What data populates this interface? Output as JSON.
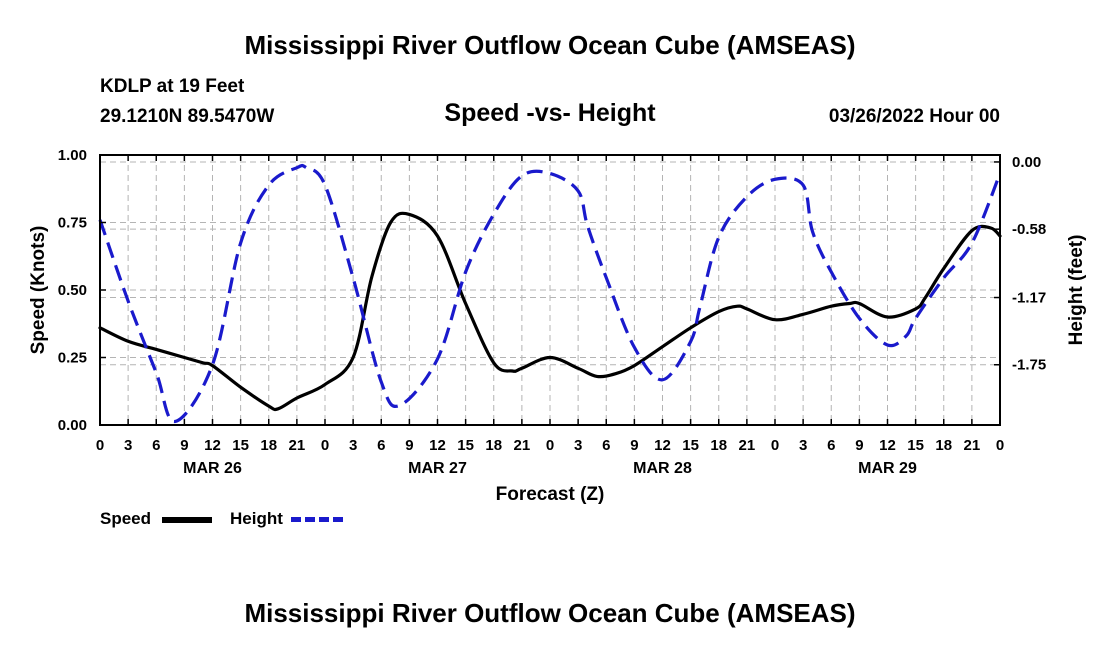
{
  "titles": {
    "top": "Mississippi River Outflow Ocean Cube (AMSEAS)",
    "bottom": "Mississippi River Outflow Ocean Cube (AMSEAS)"
  },
  "header": {
    "station": "KDLP at 19 Feet",
    "coords": "29.1210N  89.5470W",
    "subtitle": "Speed -vs- Height",
    "date": "03/26/2022 Hour 00"
  },
  "legend": {
    "speed_label": "Speed",
    "height_label": "Height",
    "speed_color": "#000000",
    "height_color": "#1a1acc"
  },
  "chart_data": {
    "type": "line",
    "xlabel": "Forecast (Z)",
    "ylabel": "Speed (Knots)",
    "y2label": "Height (feet)",
    "xlim": [
      0,
      96
    ],
    "ylim": [
      0,
      1.0
    ],
    "y2lim": [
      -2.27,
      0.06
    ],
    "grid": true,
    "x_tick_values": [
      0,
      3,
      6,
      9,
      12,
      15,
      18,
      21,
      24,
      27,
      30,
      33,
      36,
      39,
      42,
      45,
      48,
      51,
      54,
      57,
      60,
      63,
      66,
      69,
      72,
      75,
      78,
      81,
      84,
      87,
      90,
      93,
      96
    ],
    "x_tick_labels": [
      "0",
      "3",
      "6",
      "9",
      "12",
      "15",
      "18",
      "21",
      "0",
      "3",
      "6",
      "9",
      "12",
      "15",
      "18",
      "21",
      "0",
      "3",
      "6",
      "9",
      "12",
      "15",
      "18",
      "21",
      "0",
      "3",
      "6",
      "9",
      "12",
      "15",
      "18",
      "21",
      "0"
    ],
    "day_labels": [
      {
        "x": 12,
        "label": "MAR 26"
      },
      {
        "x": 36,
        "label": "MAR 27"
      },
      {
        "x": 60,
        "label": "MAR 28"
      },
      {
        "x": 84,
        "label": "MAR 29"
      }
    ],
    "y_ticks": [
      "0.00",
      "0.25",
      "0.50",
      "0.75",
      "1.00"
    ],
    "y_tick_values": [
      0,
      0.25,
      0.5,
      0.75,
      1.0
    ],
    "y2_ticks": [
      "0.00",
      "-0.58",
      "-1.17",
      "-1.75"
    ],
    "y2_tick_values": [
      0,
      -0.58,
      -1.17,
      -1.75
    ],
    "series": [
      {
        "name": "Speed",
        "axis": "left",
        "x": [
          0,
          3,
          6,
          9,
          11,
          12,
          15,
          18,
          19,
          21,
          24,
          27,
          29,
          31,
          33,
          36,
          39,
          42,
          44,
          45,
          48,
          51,
          53,
          55,
          57,
          60,
          63,
          66,
          68,
          69,
          72,
          75,
          78,
          80,
          81,
          84,
          87,
          88,
          90,
          93,
          95,
          96
        ],
        "values": [
          0.36,
          0.31,
          0.28,
          0.25,
          0.23,
          0.22,
          0.14,
          0.07,
          0.06,
          0.1,
          0.15,
          0.25,
          0.55,
          0.75,
          0.78,
          0.7,
          0.45,
          0.23,
          0.2,
          0.21,
          0.25,
          0.21,
          0.18,
          0.19,
          0.22,
          0.29,
          0.36,
          0.42,
          0.44,
          0.43,
          0.39,
          0.41,
          0.44,
          0.45,
          0.45,
          0.4,
          0.43,
          0.47,
          0.58,
          0.72,
          0.73,
          0.7
        ]
      },
      {
        "name": "Height",
        "axis": "right",
        "x": [
          0,
          3,
          6,
          8,
          12,
          15,
          18,
          21,
          22,
          24,
          27,
          30,
          32,
          36,
          39,
          42,
          45,
          48,
          51,
          52,
          54,
          57,
          60,
          63,
          64,
          66,
          69,
          72,
          75,
          76,
          78,
          81,
          84,
          86,
          87,
          90,
          93,
          96
        ],
        "values": [
          -0.5,
          -1.2,
          -1.82,
          -2.24,
          -1.75,
          -0.7,
          -0.2,
          -0.05,
          -0.05,
          -0.2,
          -1.0,
          -1.9,
          -2.1,
          -1.7,
          -0.95,
          -0.45,
          -0.12,
          -0.1,
          -0.25,
          -0.55,
          -1.0,
          -1.6,
          -1.88,
          -1.55,
          -1.25,
          -0.65,
          -0.3,
          -0.15,
          -0.2,
          -0.6,
          -0.95,
          -1.35,
          -1.58,
          -1.5,
          -1.35,
          -1.0,
          -0.7,
          -0.1
        ]
      }
    ]
  }
}
